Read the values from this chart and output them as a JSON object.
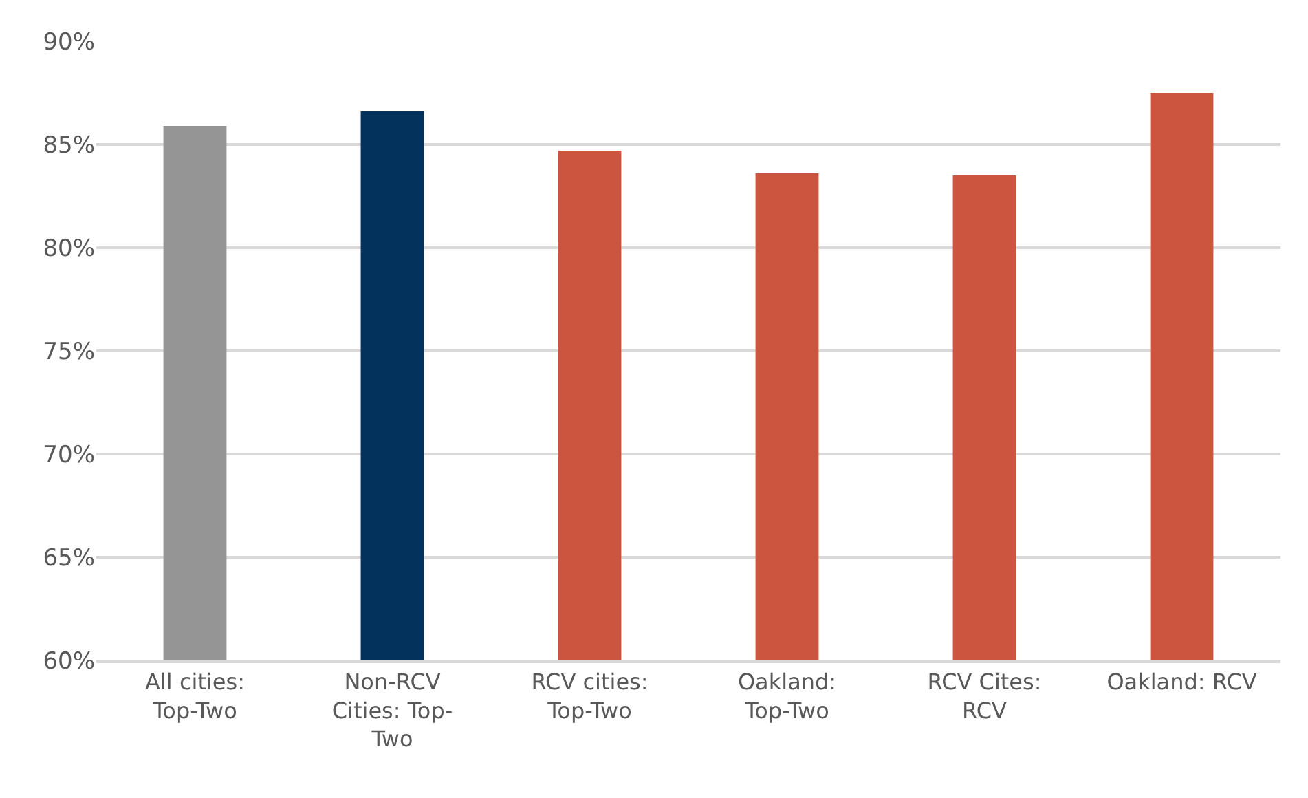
{
  "chart_data": {
    "type": "bar",
    "categories": [
      "All cities: Top-Two",
      "Non-RCV Cities: Top-Two",
      "RCV cities: Top-Two",
      "Oakland: Top-Two",
      "RCV Cites: RCV",
      "Oakland: RCV"
    ],
    "values": [
      85.9,
      86.6,
      84.7,
      83.6,
      83.5,
      87.5
    ],
    "colors": [
      "#959595",
      "#03325c",
      "#cb553e",
      "#cb553e",
      "#cb553e",
      "#cb553e"
    ],
    "ylim": [
      60,
      90
    ],
    "yticks": [
      {
        "value": 60,
        "label": "60%"
      },
      {
        "value": 65,
        "label": "65%"
      },
      {
        "value": 70,
        "label": "70%"
      },
      {
        "value": 75,
        "label": "75%"
      },
      {
        "value": 80,
        "label": "80%"
      },
      {
        "value": 85,
        "label": "85%"
      },
      {
        "value": 90,
        "label": "90%"
      }
    ],
    "grid": "y"
  }
}
